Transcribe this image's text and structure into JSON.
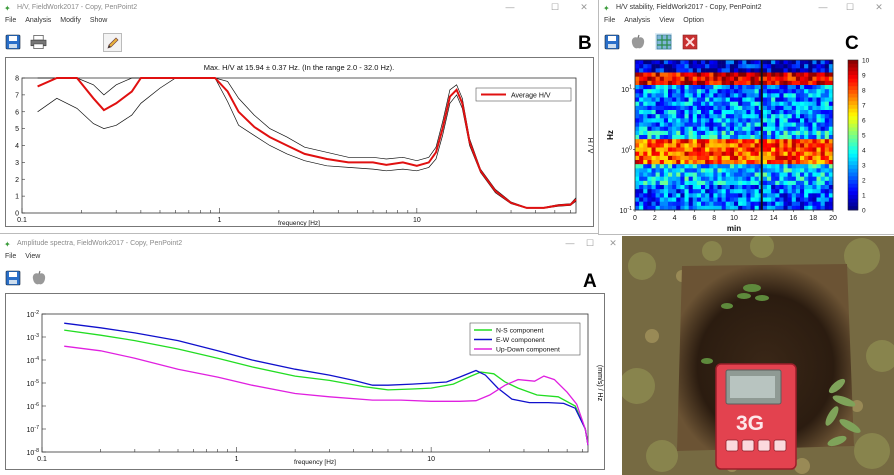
{
  "windows": {
    "hv": {
      "title": "H/V, FieldWork2017 - Copy, PenPoint2",
      "menu": [
        "File",
        "Analysis",
        "Modify",
        "Show"
      ],
      "panel_letter": "B"
    },
    "stability": {
      "title": "H/V stability, FieldWork2017 - Copy, PenPoint2",
      "menu": [
        "File",
        "Analysis",
        "View",
        "Option"
      ],
      "panel_letter": "C"
    },
    "amplitude": {
      "title": "Amplitude spectra, FieldWork2017 - Copy, PenPoint2",
      "menu": [
        "File",
        "View"
      ],
      "panel_letter": "A"
    }
  },
  "window_controls": {
    "minimize": "—",
    "maximize": "☐",
    "close": "✕"
  },
  "icons": {
    "app": "fieldwork-app-icon",
    "save": "floppy-disk-icon",
    "print": "printer-icon",
    "edit": "pencil-edit-icon",
    "apple": "apple-icon",
    "grid": "grid-icon",
    "delete": "red-x-icon"
  },
  "device": {
    "label": "3G"
  },
  "chart_data": [
    {
      "id": "hv-curve",
      "type": "line",
      "title": "Max. H/V at 15.94 ± 0.37 Hz. (In the range 2.0 - 32.0 Hz).",
      "xlabel": "frequency [Hz]",
      "ylabel": "H / V",
      "x_scale": "log",
      "xlim": [
        0.1,
        64
      ],
      "ylim": [
        0,
        8
      ],
      "x_ticks": [
        "0.1",
        "1",
        "10"
      ],
      "y_ticks": [
        "0",
        "1",
        "2",
        "3",
        "4",
        "5",
        "6",
        "7",
        "8"
      ],
      "legend": {
        "position": "top-right",
        "entries": [
          "Average H/V"
        ]
      },
      "colors": {
        "average": "#e01010",
        "bounds": "#111111"
      },
      "series": [
        {
          "name": "Average H/V",
          "points": [
            [
              0.12,
              7.5
            ],
            [
              0.15,
              8
            ],
            [
              0.19,
              8
            ],
            [
              0.23,
              6.8
            ],
            [
              0.26,
              6.1
            ],
            [
              0.3,
              6.5
            ],
            [
              0.36,
              7.2
            ],
            [
              0.4,
              8
            ],
            [
              0.6,
              8
            ],
            [
              0.95,
              8
            ],
            [
              1.1,
              7.2
            ],
            [
              1.25,
              6.0
            ],
            [
              1.5,
              5.1
            ],
            [
              1.8,
              4.5
            ],
            [
              2.2,
              4.0
            ],
            [
              2.7,
              3.5
            ],
            [
              3.5,
              3.2
            ],
            [
              4.5,
              3.0
            ],
            [
              6,
              3.0
            ],
            [
              7,
              2.85
            ],
            [
              8.5,
              3.0
            ],
            [
              10,
              2.8
            ],
            [
              11.5,
              3.0
            ],
            [
              12.5,
              3.6
            ],
            [
              13.5,
              5.0
            ],
            [
              14.7,
              6.9
            ],
            [
              15.9,
              7.3
            ],
            [
              17,
              6.5
            ],
            [
              18.5,
              4.2
            ],
            [
              21,
              2.5
            ],
            [
              25,
              1.3
            ],
            [
              30,
              0.6
            ],
            [
              36,
              0.3
            ],
            [
              44,
              0.3
            ],
            [
              52,
              0.45
            ],
            [
              60,
              0.5
            ],
            [
              64,
              0.8
            ]
          ]
        },
        {
          "points": [
            [
              0.12,
              6.0
            ],
            [
              0.15,
              6.8
            ],
            [
              0.19,
              6.2
            ],
            [
              0.23,
              5.3
            ],
            [
              0.26,
              5.0
            ],
            [
              0.3,
              5.2
            ],
            [
              0.36,
              5.8
            ],
            [
              0.4,
              6.5
            ],
            [
              0.5,
              7.4
            ],
            [
              0.6,
              8
            ],
            [
              0.95,
              8
            ],
            [
              1.1,
              6.6
            ],
            [
              1.25,
              5.2
            ],
            [
              1.5,
              4.6
            ],
            [
              1.8,
              4.0
            ],
            [
              2.2,
              3.5
            ],
            [
              2.7,
              3.1
            ],
            [
              3.5,
              2.8
            ],
            [
              4.5,
              2.7
            ],
            [
              6,
              2.6
            ],
            [
              7,
              2.5
            ],
            [
              8.5,
              2.6
            ],
            [
              10,
              2.5
            ],
            [
              11.5,
              2.7
            ],
            [
              12.5,
              3.2
            ],
            [
              13.5,
              4.6
            ],
            [
              14.7,
              6.5
            ],
            [
              15.9,
              7.0
            ],
            [
              17,
              6.2
            ],
            [
              18.5,
              4.0
            ],
            [
              21,
              2.4
            ],
            [
              25,
              1.2
            ],
            [
              30,
              0.55
            ],
            [
              36,
              0.28
            ],
            [
              44,
              0.28
            ],
            [
              52,
              0.4
            ],
            [
              60,
              0.45
            ],
            [
              64,
              0.7
            ]
          ]
        },
        {
          "points": [
            [
              0.12,
              8
            ],
            [
              0.15,
              8
            ],
            [
              0.19,
              8
            ],
            [
              0.23,
              7.6
            ],
            [
              0.26,
              7.0
            ],
            [
              0.3,
              7.6
            ],
            [
              0.36,
              8
            ],
            [
              0.6,
              8
            ],
            [
              0.95,
              8
            ],
            [
              1.1,
              7.8
            ],
            [
              1.25,
              6.8
            ],
            [
              1.5,
              5.8
            ],
            [
              1.8,
              5.0
            ],
            [
              2.2,
              4.5
            ],
            [
              2.7,
              3.9
            ],
            [
              3.5,
              3.6
            ],
            [
              4.5,
              3.3
            ],
            [
              6,
              3.3
            ],
            [
              7,
              3.2
            ],
            [
              8.5,
              3.3
            ],
            [
              10,
              3.1
            ],
            [
              11.5,
              3.3
            ],
            [
              12.5,
              3.9
            ],
            [
              13.5,
              5.4
            ],
            [
              14.7,
              7.3
            ],
            [
              15.9,
              7.6
            ],
            [
              17,
              6.8
            ],
            [
              18.5,
              4.4
            ],
            [
              21,
              2.6
            ],
            [
              25,
              1.4
            ],
            [
              30,
              0.65
            ],
            [
              36,
              0.33
            ],
            [
              44,
              0.33
            ],
            [
              52,
              0.5
            ],
            [
              60,
              0.55
            ],
            [
              64,
              0.9
            ]
          ]
        }
      ]
    },
    {
      "id": "hv-stability",
      "type": "heatmap",
      "xlabel": "min",
      "ylabel": "Hz",
      "xlim": [
        0,
        20
      ],
      "x_ticks": [
        "0",
        "2",
        "4",
        "6",
        "8",
        "10",
        "12",
        "14",
        "16",
        "18",
        "20"
      ],
      "y_scale": "log",
      "ylim": [
        0.1,
        30
      ],
      "y_ticks": [
        "10^1",
        "10^0",
        "10^-1"
      ],
      "colorbar": {
        "min": 0,
        "max": 10,
        "ticks": [
          "10",
          "9",
          "8",
          "7",
          "6",
          "5",
          "4",
          "3",
          "2",
          "1",
          "0"
        ],
        "colormap": "jet"
      },
      "highlights": [
        {
          "at_min": 12.8,
          "description": "vertical dark line"
        }
      ],
      "bands": [
        {
          "freq_range": [
            12,
            20
          ],
          "value": 9
        },
        {
          "freq_range": [
            0.6,
            1.5
          ],
          "value": 8
        }
      ]
    },
    {
      "id": "amplitude-spectra",
      "type": "line",
      "xlabel": "frequency [Hz]",
      "ylabel": "(mm/s) / Hz",
      "x_scale": "log",
      "y_scale": "log",
      "xlim": [
        0.1,
        64
      ],
      "ylim": [
        1e-08,
        0.01
      ],
      "x_ticks": [
        "0.1",
        "1",
        "10"
      ],
      "y_ticks": [
        "10^-2",
        "10^-3",
        "10^-4",
        "10^-5",
        "10^-6",
        "10^-7",
        "10^-8"
      ],
      "legend": {
        "position": "top-right",
        "entries": [
          "N-S component",
          "E-W component",
          "Up-Down component"
        ]
      },
      "series": [
        {
          "name": "N-S component",
          "color": "#22dd22",
          "points": [
            [
              0.13,
              0.002
            ],
            [
              0.2,
              0.0012
            ],
            [
              0.3,
              0.0007
            ],
            [
              0.5,
              0.0003
            ],
            [
              0.8,
              0.00012
            ],
            [
              1.2,
              5e-05
            ],
            [
              2,
              2e-05
            ],
            [
              3,
              1.3e-05
            ],
            [
              4.5,
              7e-06
            ],
            [
              6,
              5e-06
            ],
            [
              8,
              5.5e-06
            ],
            [
              10,
              6e-06
            ],
            [
              13,
              9e-06
            ],
            [
              16,
              2e-05
            ],
            [
              18,
              3e-05
            ],
            [
              21,
              2.5e-05
            ],
            [
              24,
              1.1e-05
            ],
            [
              28,
              6e-06
            ],
            [
              35,
              3e-06
            ],
            [
              45,
              2.5e-06
            ],
            [
              55,
              1e-06
            ],
            [
              62,
              1e-07
            ],
            [
              64,
              2e-08
            ]
          ]
        },
        {
          "name": "E-W component",
          "color": "#1010cc",
          "points": [
            [
              0.13,
              0.004
            ],
            [
              0.2,
              0.0025
            ],
            [
              0.3,
              0.0015
            ],
            [
              0.5,
              0.0007
            ],
            [
              0.8,
              0.00025
            ],
            [
              1.2,
              0.0001
            ],
            [
              2,
              4e-05
            ],
            [
              3,
              2.2e-05
            ],
            [
              4,
              1.3e-05
            ],
            [
              5,
              8e-06
            ],
            [
              6,
              8e-06
            ],
            [
              8,
              9e-06
            ],
            [
              10,
              1e-05
            ],
            [
              12,
              1.1e-05
            ],
            [
              14,
              1.8e-05
            ],
            [
              17,
              3.5e-05
            ],
            [
              19,
              2.2e-05
            ],
            [
              22,
              6e-06
            ],
            [
              26,
              2e-06
            ],
            [
              32,
              1.4e-06
            ],
            [
              40,
              1.4e-06
            ],
            [
              48,
              1.3e-06
            ],
            [
              55,
              8e-07
            ],
            [
              62,
              1e-07
            ],
            [
              64,
              2e-08
            ]
          ]
        },
        {
          "name": "Up-Down component",
          "color": "#e020e0",
          "points": [
            [
              0.13,
              0.0004
            ],
            [
              0.2,
              0.00025
            ],
            [
              0.3,
              0.00012
            ],
            [
              0.5,
              4e-05
            ],
            [
              0.8,
              1.8e-05
            ],
            [
              1.2,
              8e-06
            ],
            [
              2,
              3.5e-06
            ],
            [
              3,
              2.5e-06
            ],
            [
              5,
              1.8e-06
            ],
            [
              7,
              1.8e-06
            ],
            [
              10,
              1.6e-06
            ],
            [
              14,
              1.6e-06
            ],
            [
              17,
              1.7e-06
            ],
            [
              20,
              3e-06
            ],
            [
              24,
              8e-06
            ],
            [
              28,
              1.4e-05
            ],
            [
              34,
              1.2e-05
            ],
            [
              38,
              2e-05
            ],
            [
              43,
              1.4e-05
            ],
            [
              50,
              4e-06
            ],
            [
              56,
              1.2e-06
            ],
            [
              62,
              1e-07
            ],
            [
              64,
              2e-08
            ]
          ]
        }
      ]
    }
  ]
}
